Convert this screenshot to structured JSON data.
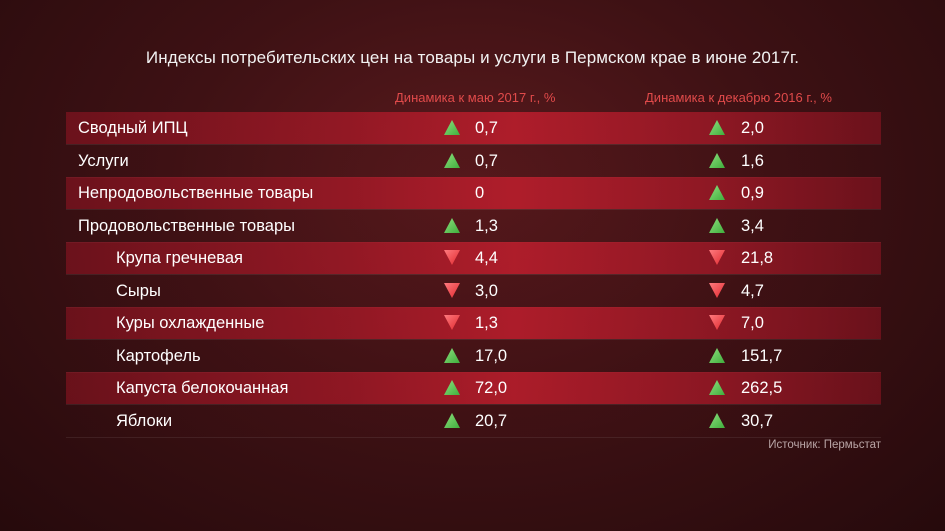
{
  "title": "Индексы потребительских цен на товары и услуги в Пермском крае в июне 2017г.",
  "columns": {
    "col1": "Динамика к маю 2017 г., %",
    "col2": "Динамика к декабрю 2016 г., %"
  },
  "source": "Источник: Пермьстат",
  "colors": {
    "up": "#3fae3c",
    "down": "#e0282e",
    "header": "#e04a4a"
  },
  "chart_data": {
    "type": "table",
    "columns": [
      "Динамика к маю 2017 г., %",
      "Динамика к декабрю 2016 г., %"
    ],
    "rows": [
      {
        "name": "Сводный ИПЦ",
        "indent": 0,
        "may": "0,7",
        "may_dir": "up",
        "dec": "2,0",
        "dec_dir": "up"
      },
      {
        "name": "Услуги",
        "indent": 0,
        "may": "0,7",
        "may_dir": "up",
        "dec": "1,6",
        "dec_dir": "up"
      },
      {
        "name": "Непродовольственные товары",
        "indent": 0,
        "may": "0",
        "may_dir": "none",
        "dec": "0,9",
        "dec_dir": "up"
      },
      {
        "name": "Продовольственные товары",
        "indent": 0,
        "may": "1,3",
        "may_dir": "up",
        "dec": "3,4",
        "dec_dir": "up"
      },
      {
        "name": "Крупа гречневая",
        "indent": 1,
        "may": "4,4",
        "may_dir": "down",
        "dec": "21,8",
        "dec_dir": "down"
      },
      {
        "name": "Сыры",
        "indent": 1,
        "may": "3,0",
        "may_dir": "down",
        "dec": "4,7",
        "dec_dir": "down"
      },
      {
        "name": "Куры охлажденные",
        "indent": 1,
        "may": "1,3",
        "may_dir": "down",
        "dec": "7,0",
        "dec_dir": "down"
      },
      {
        "name": "Картофель",
        "indent": 1,
        "may": "17,0",
        "may_dir": "up",
        "dec": "151,7",
        "dec_dir": "up"
      },
      {
        "name": "Капуста белокочанная",
        "indent": 1,
        "may": "72,0",
        "may_dir": "up",
        "dec": "262,5",
        "dec_dir": "up"
      },
      {
        "name": "Яблоки",
        "indent": 1,
        "may": "20,7",
        "may_dir": "up",
        "dec": "30,7",
        "dec_dir": "up"
      }
    ]
  }
}
